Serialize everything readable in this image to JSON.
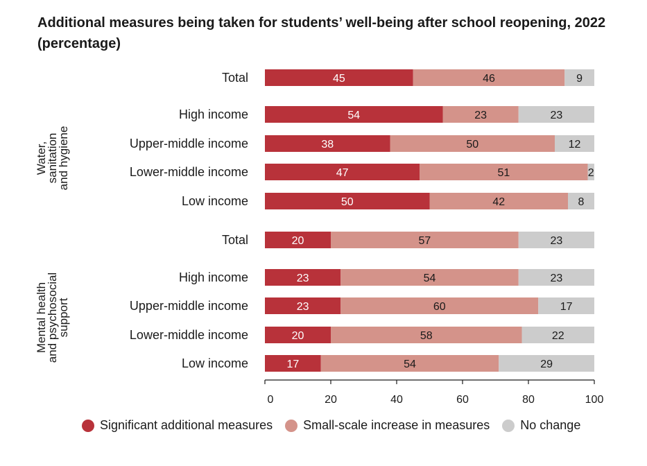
{
  "chart_data": {
    "type": "bar",
    "orientation": "horizontal",
    "stacked": true,
    "title": "Additional measures being taken for students’ well-being after school reopening, 2022 (percentage)",
    "xlim": [
      0,
      100
    ],
    "xticks": [
      "0",
      "20",
      "40",
      "60",
      "80",
      "100"
    ],
    "grid": false,
    "legend_position": "bottom",
    "series": [
      {
        "name": "Significant additional measures",
        "color": "#b8323a",
        "text_color": "#ffffff"
      },
      {
        "name": "Small-scale increase in measures",
        "color": "#d4938a",
        "text_color": "#1a1a1a"
      },
      {
        "name": "No change",
        "color": "#cccccc",
        "text_color": "#1a1a1a"
      }
    ],
    "groups": [
      {
        "label_lines": [
          "Water,",
          "sanitation",
          "and hygiene"
        ],
        "rows": [
          {
            "label": "Total",
            "values": [
              45,
              46,
              9
            ]
          },
          {
            "label": "High income",
            "values": [
              54,
              23,
              23
            ]
          },
          {
            "label": "Upper-middle income",
            "values": [
              38,
              50,
              12
            ]
          },
          {
            "label": "Lower-middle income",
            "values": [
              47,
              51,
              2
            ]
          },
          {
            "label": "Low income",
            "values": [
              50,
              42,
              8
            ]
          }
        ]
      },
      {
        "label_lines": [
          "Mental health",
          "and psychosocial",
          "support"
        ],
        "rows": [
          {
            "label": "Total",
            "values": [
              20,
              57,
              23
            ]
          },
          {
            "label": "High income",
            "values": [
              23,
              54,
              23
            ]
          },
          {
            "label": "Upper-middle income",
            "values": [
              23,
              60,
              17
            ]
          },
          {
            "label": "Lower-middle income",
            "values": [
              20,
              58,
              22
            ]
          },
          {
            "label": "Low income",
            "values": [
              17,
              54,
              29
            ]
          }
        ]
      }
    ]
  }
}
